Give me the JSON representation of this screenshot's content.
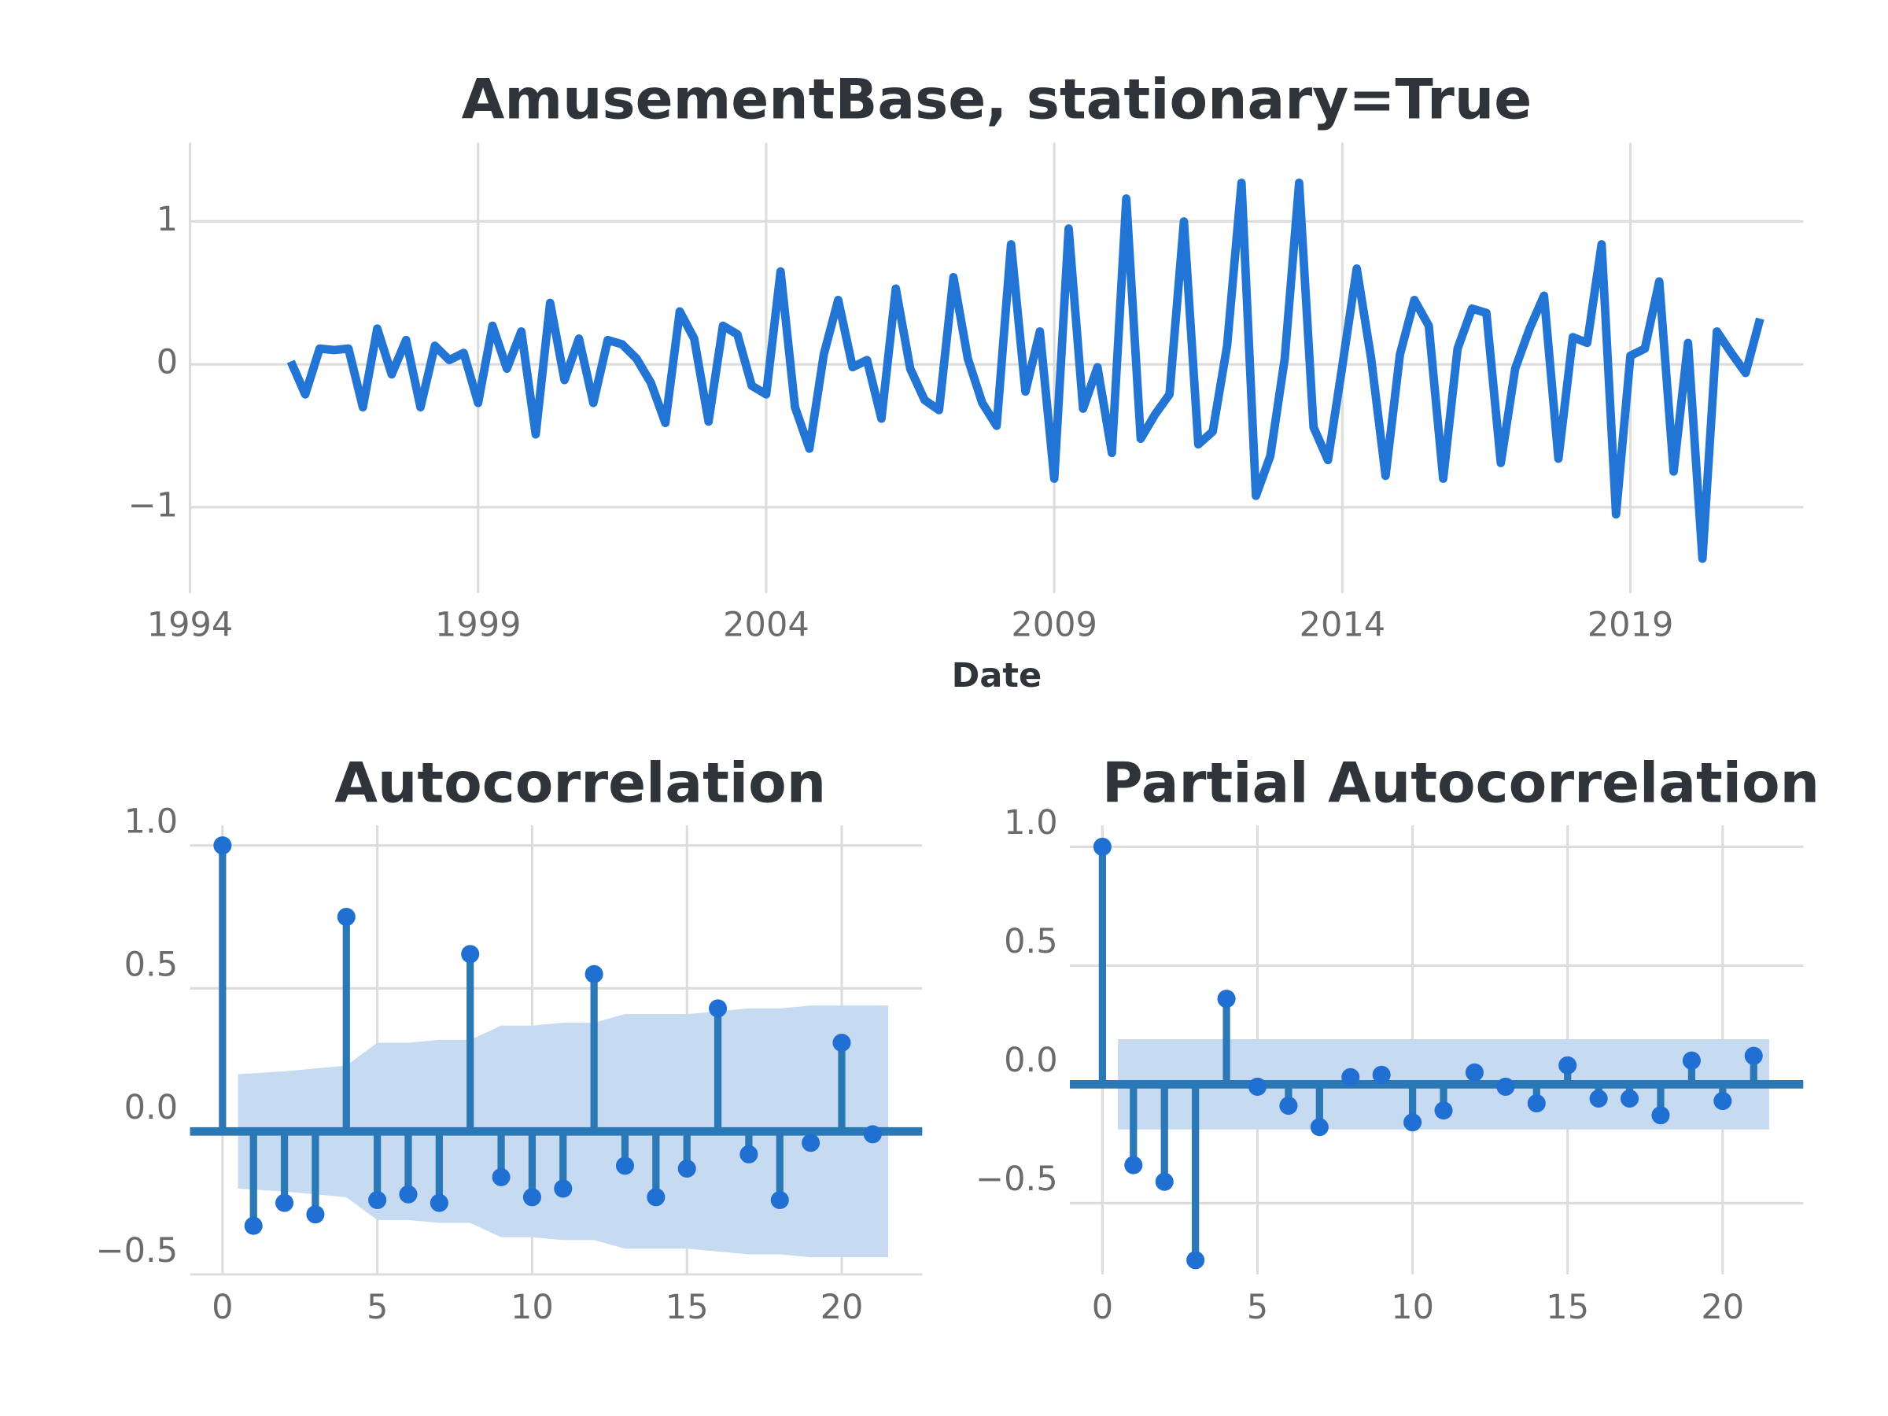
{
  "chart_data": [
    {
      "type": "line",
      "title": "AmusementBase, stationary=True",
      "x_label": "Date",
      "color": "#2275d4",
      "grid": true,
      "x": [
        1995.75,
        1996,
        1996.25,
        1996.5,
        1996.75,
        1997,
        1997.25,
        1997.5,
        1997.75,
        1998,
        1998.25,
        1998.5,
        1998.75,
        1999,
        1999.25,
        1999.5,
        1999.75,
        2000,
        2000.25,
        2000.5,
        2000.75,
        2001,
        2001.25,
        2001.5,
        2001.75,
        2002,
        2002.25,
        2002.5,
        2002.75,
        2003,
        2003.25,
        2003.5,
        2003.75,
        2004,
        2004.25,
        2004.5,
        2004.75,
        2005,
        2005.25,
        2005.5,
        2005.75,
        2006,
        2006.25,
        2006.5,
        2006.75,
        2007,
        2007.25,
        2007.5,
        2007.75,
        2008,
        2008.25,
        2008.5,
        2008.75,
        2009,
        2009.25,
        2009.5,
        2009.75,
        2010,
        2010.25,
        2010.5,
        2010.75,
        2011,
        2011.25,
        2011.5,
        2011.75,
        2012,
        2012.25,
        2012.5,
        2012.75,
        2013,
        2013.25,
        2013.5,
        2013.75,
        2014,
        2014.25,
        2014.5,
        2014.75,
        2015,
        2015.25,
        2015.5,
        2015.75,
        2016,
        2016.25,
        2016.5,
        2016.75,
        2017,
        2017.25,
        2017.5,
        2017.75,
        2018,
        2018.25,
        2018.5,
        2018.75,
        2019,
        2019.25,
        2019.5,
        2019.75,
        2020,
        2020.25,
        2020.5,
        2020.75,
        2021,
        2021.25
      ],
      "values": [
        0.02,
        -0.21,
        0.11,
        0.1,
        0.11,
        -0.3,
        0.25,
        -0.07,
        0.17,
        -0.3,
        0.13,
        0.03,
        0.08,
        -0.27,
        0.27,
        -0.03,
        0.23,
        -0.49,
        0.43,
        -0.11,
        0.18,
        -0.27,
        0.17,
        0.14,
        0.04,
        -0.13,
        -0.41,
        0.37,
        0.18,
        -0.4,
        0.27,
        0.21,
        -0.15,
        -0.21,
        0.65,
        -0.3,
        -0.59,
        0.07,
        0.45,
        -0.02,
        0.03,
        -0.38,
        0.53,
        -0.03,
        -0.25,
        -0.32,
        0.61,
        0.04,
        -0.27,
        -0.43,
        0.84,
        -0.19,
        0.23,
        -0.8,
        0.95,
        -0.31,
        -0.02,
        -0.62,
        1.16,
        -0.52,
        -0.35,
        -0.21,
        1.0,
        -0.56,
        -0.47,
        0.13,
        1.27,
        -0.92,
        -0.64,
        0.04,
        1.27,
        -0.44,
        -0.67,
        -0.01,
        0.67,
        0.04,
        -0.78,
        0.07,
        0.45,
        0.27,
        -0.8,
        0.11,
        0.39,
        0.36,
        -0.69,
        -0.03,
        0.25,
        0.48,
        -0.66,
        0.19,
        0.15,
        0.84,
        -1.05,
        0.06,
        0.11,
        0.58,
        -0.75,
        0.15,
        -1.36,
        0.23,
        0.08,
        -0.06,
        0.32
      ],
      "xlim": [
        1994,
        2022
      ],
      "xticks": [
        1994,
        1999,
        2004,
        2009,
        2014,
        2019
      ],
      "ylim": [
        -1.6,
        1.55
      ],
      "yticks": [
        {
          "value": -1,
          "label": "−1"
        },
        0,
        1
      ]
    },
    {
      "type": "stem",
      "title": "Autocorrelation",
      "color": "#2a78b6",
      "marker_color": "#2070d4",
      "band_color": "#c6daf1",
      "grid": true,
      "x": [
        0,
        1,
        2,
        3,
        4,
        5,
        6,
        7,
        8,
        9,
        10,
        11,
        12,
        13,
        14,
        15,
        16,
        17,
        18,
        19,
        20,
        21
      ],
      "values": [
        1.0,
        -0.33,
        -0.25,
        -0.29,
        0.75,
        -0.24,
        -0.22,
        -0.25,
        0.62,
        -0.16,
        -0.23,
        -0.2,
        0.55,
        -0.12,
        -0.23,
        -0.13,
        0.43,
        -0.08,
        -0.24,
        -0.04,
        0.31,
        -0.01
      ],
      "conf_upper": [
        0.2,
        0.21,
        0.22,
        0.23,
        0.31,
        0.31,
        0.32,
        0.32,
        0.37,
        0.37,
        0.38,
        0.38,
        0.41,
        0.41,
        0.41,
        0.42,
        0.43,
        0.43,
        0.44,
        0.44,
        0.44
      ],
      "conf_lower": [
        -0.2,
        -0.21,
        -0.22,
        -0.23,
        -0.31,
        -0.31,
        -0.32,
        -0.32,
        -0.37,
        -0.37,
        -0.38,
        -0.38,
        -0.41,
        -0.41,
        -0.41,
        -0.42,
        -0.43,
        -0.43,
        -0.44,
        -0.44,
        -0.44
      ],
      "xlim": [
        -1.05,
        22.6
      ],
      "xticks": [
        0,
        5,
        10,
        15,
        20
      ],
      "ylim": [
        -0.5,
        1.07
      ],
      "yticks": [
        {
          "value": -0.5,
          "label": "−0.5"
        },
        {
          "value": 0,
          "label": "0.0"
        },
        0.5,
        {
          "value": 1,
          "label": "1.0"
        }
      ]
    },
    {
      "type": "stem",
      "title": "Partial Autocorrelation",
      "color": "#2a78b6",
      "marker_color": "#2070d4",
      "band_color": "#c6daf1",
      "grid": true,
      "x": [
        0,
        1,
        2,
        3,
        4,
        5,
        6,
        7,
        8,
        9,
        10,
        11,
        12,
        13,
        14,
        15,
        16,
        17,
        18,
        19,
        20,
        21
      ],
      "values": [
        1.0,
        -0.34,
        -0.41,
        -0.74,
        0.36,
        -0.01,
        -0.09,
        -0.18,
        0.03,
        0.04,
        -0.16,
        -0.11,
        0.05,
        -0.01,
        -0.08,
        0.08,
        -0.06,
        -0.06,
        -0.13,
        0.1,
        -0.07,
        0.12
      ],
      "conf_upper": [
        0.19,
        0.19,
        0.19,
        0.19,
        0.19,
        0.19,
        0.19,
        0.19,
        0.19,
        0.19,
        0.19,
        0.19,
        0.19,
        0.19,
        0.19,
        0.19,
        0.19,
        0.19,
        0.19,
        0.19,
        0.19
      ],
      "conf_lower": [
        -0.19,
        -0.19,
        -0.19,
        -0.19,
        -0.19,
        -0.19,
        -0.19,
        -0.19,
        -0.19,
        -0.19,
        -0.19,
        -0.19,
        -0.19,
        -0.19,
        -0.19,
        -0.19,
        -0.19,
        -0.19,
        -0.19,
        -0.19,
        -0.19
      ],
      "xlim": [
        -1.05,
        22.6
      ],
      "xticks": [
        0,
        5,
        10,
        15,
        20
      ],
      "ylim": [
        -0.8,
        1.09
      ],
      "yticks": [
        {
          "value": -0.5,
          "label": "−0.5"
        },
        {
          "value": 0,
          "label": "0.0"
        },
        0.5,
        {
          "value": 1,
          "label": "1.0"
        }
      ]
    }
  ]
}
